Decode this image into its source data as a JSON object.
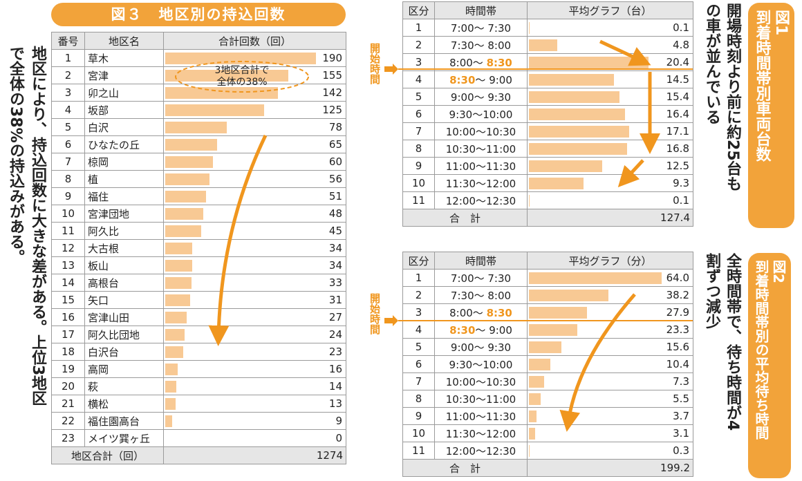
{
  "fig3": {
    "title": "図３　地区別の持込回数",
    "headers": [
      "番号",
      "地区名",
      "合計回数（回）"
    ],
    "total_label": "地区合計（回）",
    "total_value": "1274",
    "annotation_line1": "3地区合計で",
    "annotation_line2": "全体の38%",
    "side_text": [
      "地区により、持込回数に大きな差がある。上位3地区",
      "で全体の38%の持込みがある。"
    ]
  },
  "fig1": {
    "badge_lines": [
      "図1",
      "到着時間帯別車両台数"
    ],
    "headers": [
      "区分",
      "時間帯",
      "平均グラフ（台）"
    ],
    "total_label": "合　計",
    "total_value": "127.4",
    "side_text": [
      "開場時刻より前に約25台も",
      "の車が並んでいる"
    ],
    "start_label": "開始時間"
  },
  "fig2": {
    "badge_lines": [
      "図2",
      "到着時間帯別の平均待ち時間"
    ],
    "headers": [
      "区分",
      "時間帯",
      "平均グラフ（分）"
    ],
    "total_label": "合　計",
    "total_value": "199.2",
    "side_text": [
      "全時間帯で、待ち時間が4",
      "割ずつ減少"
    ],
    "start_label": "開始時間"
  },
  "chart_data": [
    {
      "type": "bar",
      "title": "図３　地区別の持込回数",
      "xlabel": "地区名",
      "ylabel": "合計回数（回）",
      "ids": [
        "1",
        "2",
        "3",
        "4",
        "5",
        "6",
        "7",
        "8",
        "9",
        "10",
        "11",
        "12",
        "13",
        "14",
        "15",
        "16",
        "17",
        "18",
        "19",
        "20",
        "21",
        "22",
        "23"
      ],
      "categories": [
        "草木",
        "宮津",
        "卯之山",
        "坂部",
        "白沢",
        "ひなたの丘",
        "椋岡",
        "植",
        "福住",
        "宮津団地",
        "阿久比",
        "大古根",
        "板山",
        "高根台",
        "矢口",
        "宮津山田",
        "阿久比団地",
        "白沢台",
        "高岡",
        "萩",
        "横松",
        "福住園高台",
        "メイツ巽ヶ丘"
      ],
      "values": [
        190,
        155,
        142,
        125,
        78,
        65,
        60,
        56,
        51,
        48,
        45,
        34,
        34,
        33,
        31,
        27,
        24,
        23,
        16,
        14,
        13,
        9,
        0
      ],
      "total": 1274,
      "xlim": [
        0,
        190
      ]
    },
    {
      "type": "bar",
      "title": "到着時間帯別車両台数",
      "xlabel": "時間帯",
      "ylabel": "平均グラフ（台）",
      "ids": [
        "1",
        "2",
        "3",
        "4",
        "5",
        "6",
        "7",
        "8",
        "9",
        "10",
        "11"
      ],
      "categories": [
        "7:00～ 7:30",
        "7:30～ 8:00",
        "8:00～ 8:30",
        "8:30～ 9:00",
        "9:00～ 9:30",
        "9:30～10:00",
        "10:00～10:30",
        "10:30～11:00",
        "11:00～11:30",
        "11:30～12:00",
        "12:00～12:30"
      ],
      "values": [
        0.1,
        4.8,
        20.4,
        14.5,
        15.4,
        16.4,
        17.1,
        16.8,
        12.5,
        9.3,
        0.1
      ],
      "total": 127.4,
      "xlim": [
        0,
        21
      ]
    },
    {
      "type": "bar",
      "title": "到着時間帯別の平均待ち時間",
      "xlabel": "時間帯",
      "ylabel": "平均グラフ（分）",
      "ids": [
        "1",
        "2",
        "3",
        "4",
        "5",
        "6",
        "7",
        "8",
        "9",
        "10",
        "11"
      ],
      "categories": [
        "7:00～ 7:30",
        "7:30～ 8:00",
        "8:00～ 8:30",
        "8:30～ 9:00",
        "9:00～ 9:30",
        "9:30～10:00",
        "10:00～10:30",
        "10:30～11:00",
        "11:00～11:30",
        "11:30～12:00",
        "12:00～12:30"
      ],
      "values": [
        64.0,
        38.2,
        27.9,
        23.3,
        15.6,
        10.4,
        7.3,
        5.5,
        3.7,
        3.1,
        0.3
      ],
      "total": 199.2,
      "xlim": [
        0,
        64
      ]
    }
  ],
  "colors": {
    "accent": "#f2a33a",
    "bar": "#f8c994",
    "header": "#e6e6e6",
    "highlight": "#f0961e"
  }
}
